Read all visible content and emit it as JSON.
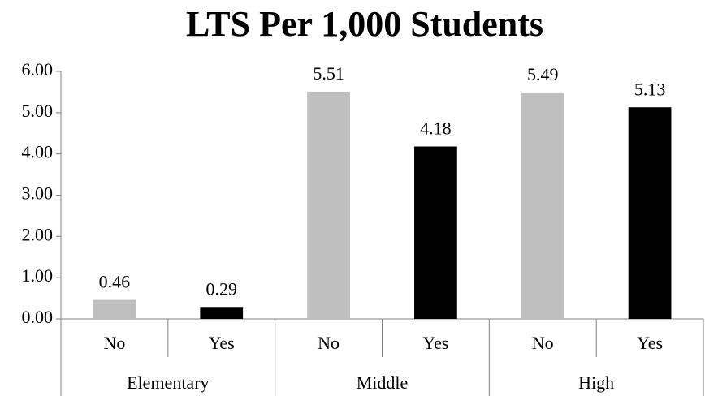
{
  "chart_data": {
    "type": "bar",
    "title": "LTS Per 1,000 Students",
    "categories": [
      "No",
      "Yes",
      "No",
      "Yes",
      "No",
      "Yes"
    ],
    "groups": [
      "Elementary",
      "Middle",
      "High"
    ],
    "values": [
      0.46,
      0.29,
      5.51,
      4.18,
      5.49,
      5.13
    ],
    "colors": [
      "#bfbfbf",
      "#000000",
      "#bfbfbf",
      "#000000",
      "#bfbfbf",
      "#000000"
    ],
    "ylim": [
      0,
      6
    ],
    "yticks": [
      {
        "value": 0,
        "label": "0.00"
      },
      {
        "value": 1,
        "label": "1.00"
      },
      {
        "value": 2,
        "label": "2.00"
      },
      {
        "value": 3,
        "label": "3.00"
      },
      {
        "value": 4,
        "label": "4.00"
      },
      {
        "value": 5,
        "label": "5.00"
      },
      {
        "value": 6,
        "label": "6.00"
      }
    ],
    "grid": false
  }
}
